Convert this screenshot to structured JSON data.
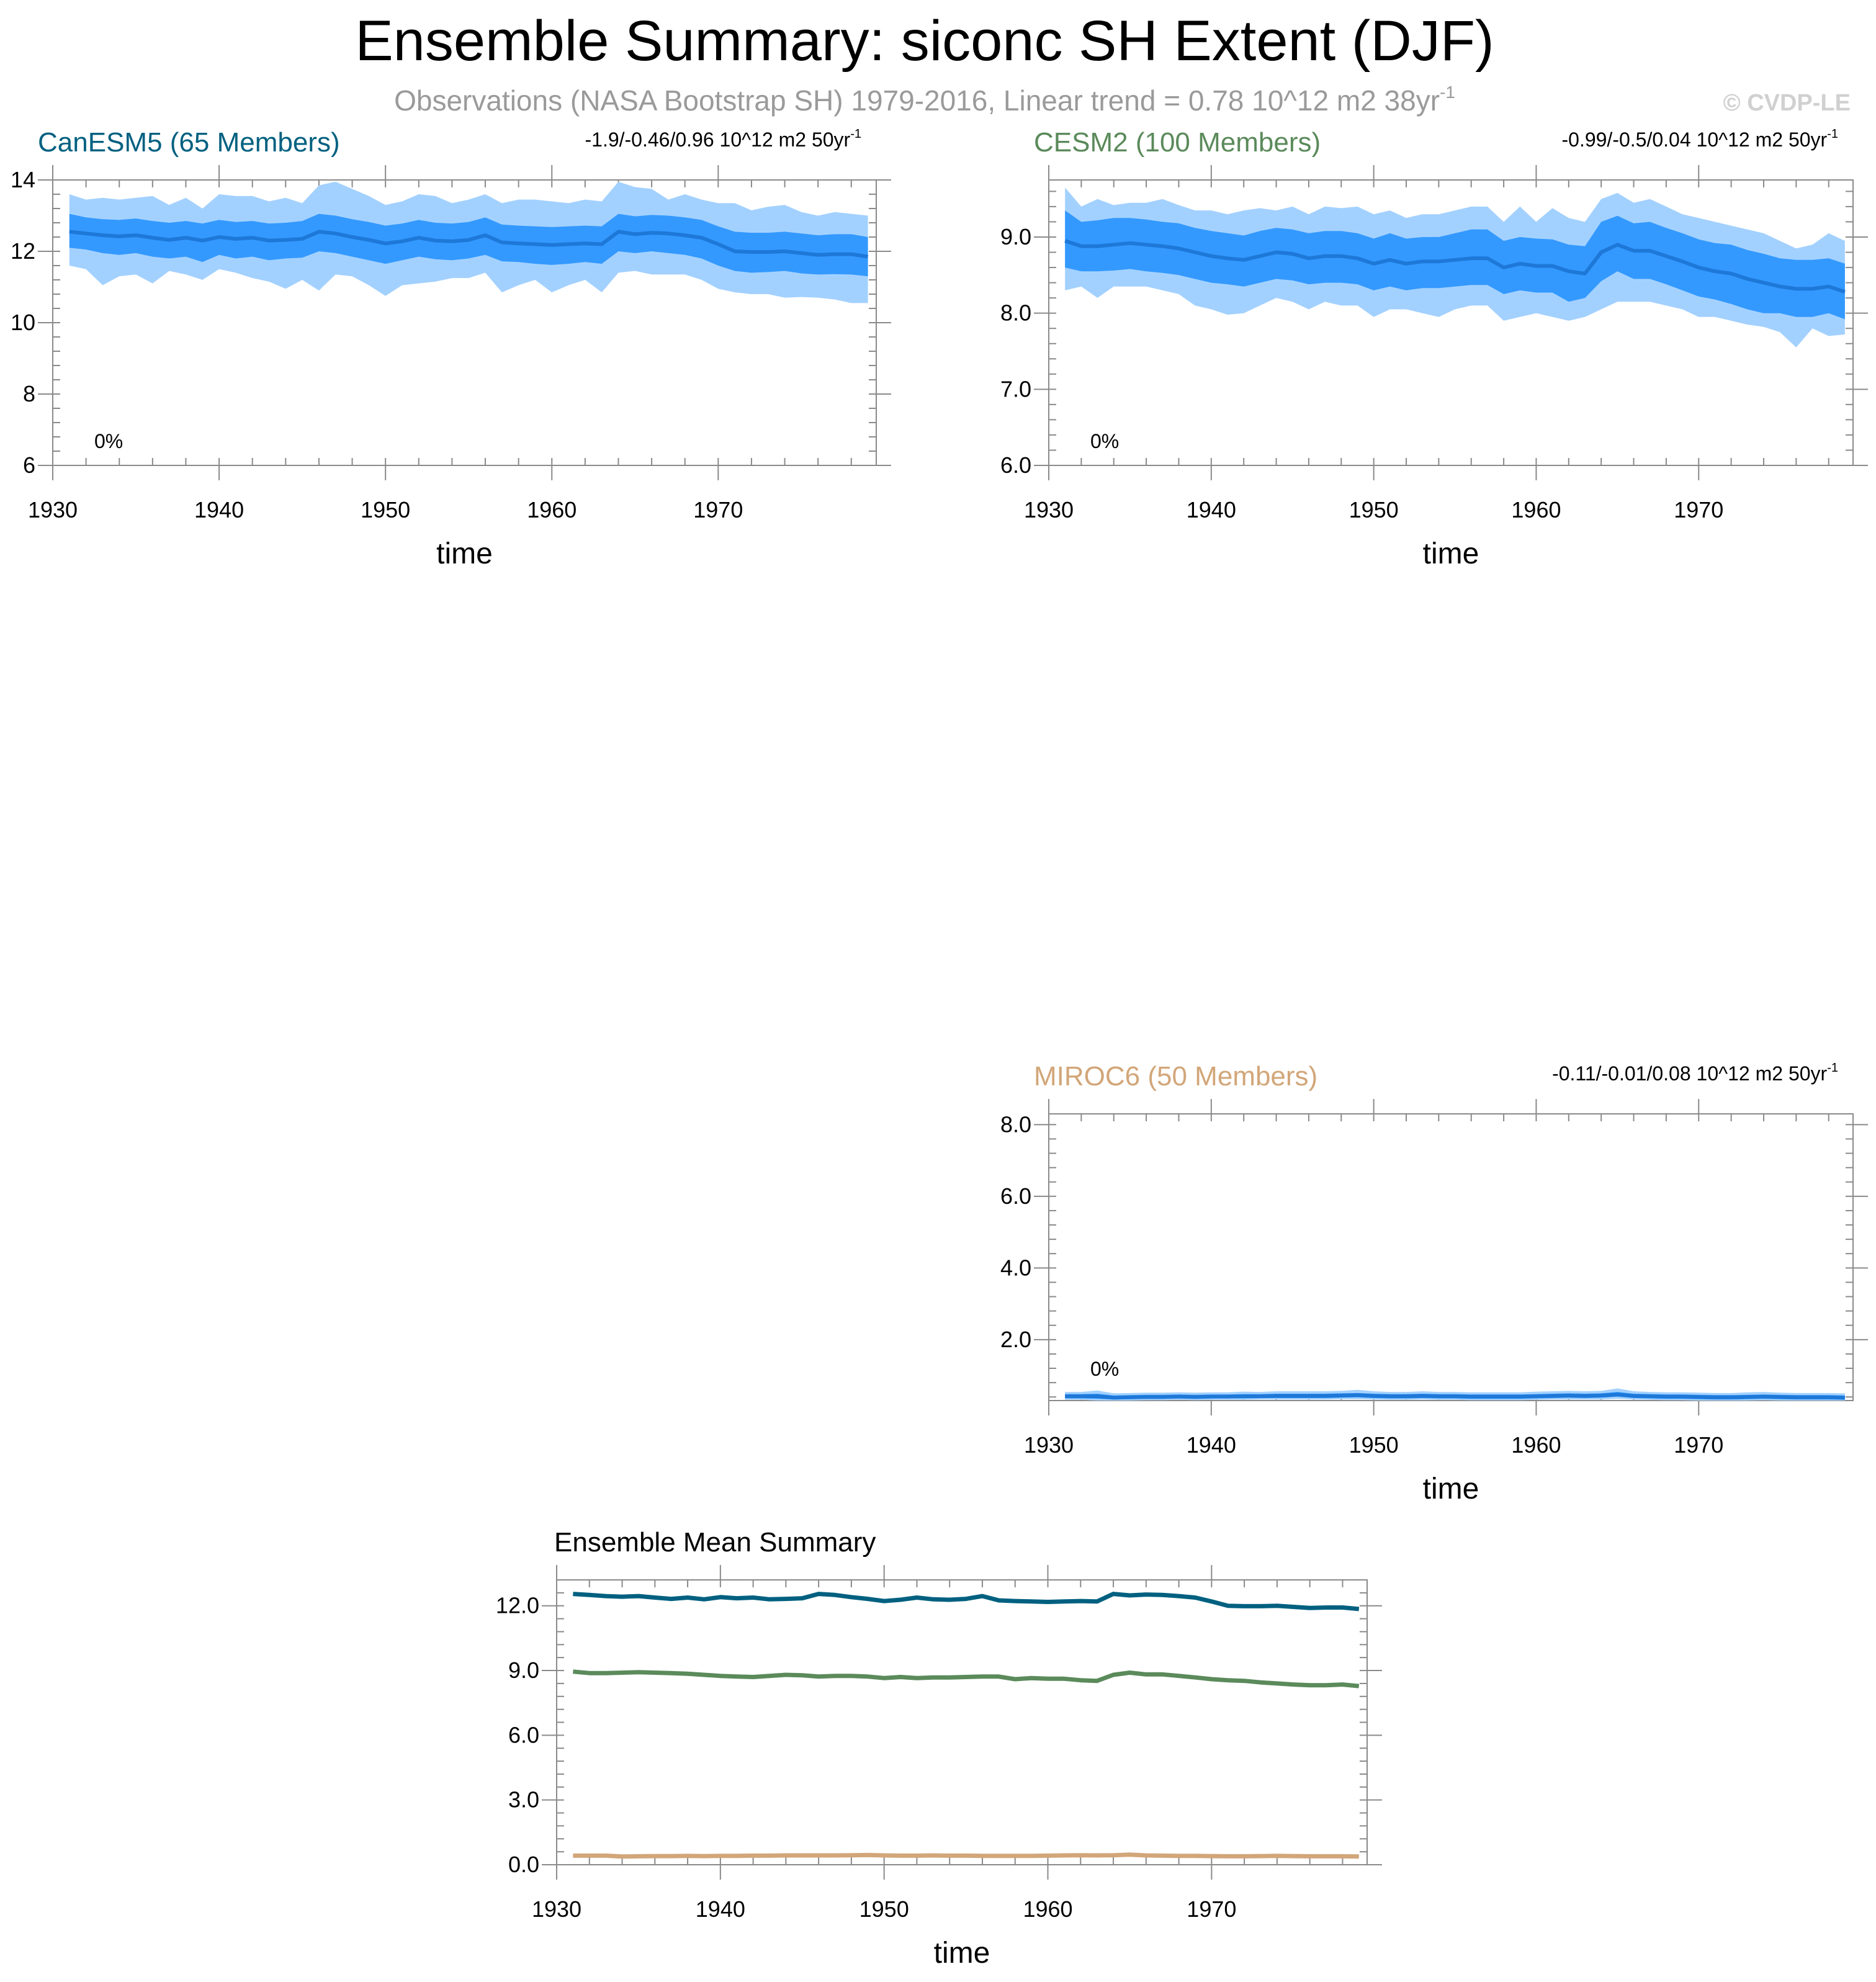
{
  "figure": {
    "title": "Ensemble Summary: siconc SH Extent (DJF)",
    "subtitle_main": "Observations (NASA Bootstrap SH) 1979-2016, Linear trend = 0.78 10^12 m2 38yr",
    "subtitle_exp": "-1",
    "watermark": "© CVDP-LE"
  },
  "colors": {
    "band_outer": "#A3D1FF",
    "band_inner": "#3399FF",
    "mean_line": "#1E78D8",
    "axis": "#000000",
    "subtitle": "#9A9A9A",
    "watermark": "#D0D0D0"
  },
  "chart_data": [
    {
      "id": "canesm5",
      "type": "area",
      "title": "CanESM5 (65 Members)",
      "title_color": "#006080",
      "trend_main": "-1.9/-0.46/0.96 10^12 m2 50yr",
      "trend_exp": "-1",
      "percent_label": "0%",
      "xlabel": "time",
      "xlim": [
        1930,
        1979.5
      ],
      "xticks": [
        1930,
        1940,
        1950,
        1960,
        1970
      ],
      "xtick_labels": [
        "1930",
        "1940",
        "1950",
        "1960",
        "1970"
      ],
      "ylim": [
        6,
        14
      ],
      "yticks": [
        6,
        8,
        10,
        12,
        14
      ],
      "ytick_labels": [
        "6",
        "8",
        "10",
        "12",
        "14"
      ],
      "x": [
        1931,
        1932,
        1933,
        1934,
        1935,
        1936,
        1937,
        1938,
        1939,
        1940,
        1941,
        1942,
        1943,
        1944,
        1945,
        1946,
        1947,
        1948,
        1949,
        1950,
        1951,
        1952,
        1953,
        1954,
        1955,
        1956,
        1957,
        1958,
        1959,
        1960,
        1961,
        1962,
        1963,
        1964,
        1965,
        1966,
        1967,
        1968,
        1969,
        1970,
        1971,
        1972,
        1973,
        1974,
        1975,
        1976,
        1977,
        1978,
        1979
      ],
      "mean": [
        12.55,
        12.5,
        12.45,
        12.42,
        12.45,
        12.38,
        12.32,
        12.38,
        12.3,
        12.4,
        12.35,
        12.38,
        12.3,
        12.32,
        12.35,
        12.55,
        12.5,
        12.4,
        12.32,
        12.22,
        12.28,
        12.38,
        12.3,
        12.28,
        12.32,
        12.45,
        12.25,
        12.22,
        12.2,
        12.18,
        12.2,
        12.22,
        12.2,
        12.55,
        12.48,
        12.52,
        12.5,
        12.45,
        12.38,
        12.2,
        12.0,
        11.98,
        11.98,
        12.0,
        11.95,
        11.9,
        11.92,
        11.92,
        11.85
      ],
      "p10": [
        12.1,
        12.05,
        11.95,
        11.9,
        11.95,
        11.85,
        11.8,
        11.85,
        11.7,
        11.9,
        11.8,
        11.85,
        11.75,
        11.8,
        11.82,
        12.0,
        11.95,
        11.85,
        11.75,
        11.65,
        11.75,
        11.85,
        11.78,
        11.75,
        11.8,
        11.9,
        11.72,
        11.7,
        11.65,
        11.62,
        11.65,
        11.7,
        11.65,
        12.0,
        11.95,
        12.0,
        11.95,
        11.9,
        11.8,
        11.6,
        11.45,
        11.4,
        11.42,
        11.45,
        11.38,
        11.35,
        11.36,
        11.35,
        11.3
      ],
      "p90": [
        13.05,
        12.95,
        12.9,
        12.88,
        12.92,
        12.85,
        12.8,
        12.85,
        12.78,
        12.88,
        12.82,
        12.85,
        12.78,
        12.8,
        12.85,
        13.05,
        13.0,
        12.9,
        12.82,
        12.72,
        12.78,
        12.88,
        12.8,
        12.78,
        12.82,
        12.95,
        12.75,
        12.72,
        12.7,
        12.68,
        12.7,
        12.72,
        12.7,
        13.05,
        12.98,
        13.02,
        13.0,
        12.95,
        12.88,
        12.7,
        12.55,
        12.52,
        12.52,
        12.55,
        12.5,
        12.45,
        12.48,
        12.48,
        12.4
      ],
      "min": [
        11.6,
        11.5,
        11.05,
        11.3,
        11.35,
        11.1,
        11.45,
        11.35,
        11.2,
        11.5,
        11.4,
        11.25,
        11.15,
        10.95,
        11.2,
        10.9,
        11.35,
        11.3,
        11.05,
        10.75,
        11.05,
        11.1,
        11.15,
        11.25,
        11.25,
        11.4,
        10.85,
        11.05,
        11.2,
        10.85,
        11.05,
        11.2,
        10.85,
        11.4,
        11.45,
        11.35,
        11.35,
        11.35,
        11.2,
        10.95,
        10.85,
        10.8,
        10.8,
        10.7,
        10.72,
        10.7,
        10.65,
        10.55,
        10.55
      ],
      "max": [
        13.6,
        13.45,
        13.5,
        13.45,
        13.5,
        13.55,
        13.3,
        13.5,
        13.2,
        13.6,
        13.55,
        13.55,
        13.4,
        13.5,
        13.35,
        13.85,
        13.95,
        13.75,
        13.55,
        13.3,
        13.4,
        13.6,
        13.55,
        13.35,
        13.45,
        13.6,
        13.35,
        13.45,
        13.45,
        13.4,
        13.35,
        13.45,
        13.4,
        13.95,
        13.8,
        13.75,
        13.45,
        13.6,
        13.45,
        13.35,
        13.35,
        13.15,
        13.25,
        13.3,
        13.1,
        13.0,
        13.1,
        13.05,
        13.0
      ]
    },
    {
      "id": "cesm2",
      "type": "area",
      "title": "CESM2 (100 Members)",
      "title_color": "#5B8A5B",
      "trend_main": "-0.99/-0.5/0.04 10^12 m2 50yr",
      "trend_exp": "-1",
      "percent_label": "0%",
      "xlabel": "time",
      "xlim": [
        1930,
        1979.5
      ],
      "xticks": [
        1930,
        1940,
        1950,
        1960,
        1970
      ],
      "xtick_labels": [
        "1930",
        "1940",
        "1950",
        "1960",
        "1970"
      ],
      "ylim": [
        6.0,
        9.75
      ],
      "yticks": [
        6.0,
        7.0,
        8.0,
        9.0
      ],
      "ytick_labels": [
        "6.0",
        "7.0",
        "8.0",
        "9.0"
      ],
      "x": [
        1931,
        1932,
        1933,
        1934,
        1935,
        1936,
        1937,
        1938,
        1939,
        1940,
        1941,
        1942,
        1943,
        1944,
        1945,
        1946,
        1947,
        1948,
        1949,
        1950,
        1951,
        1952,
        1953,
        1954,
        1955,
        1956,
        1957,
        1958,
        1959,
        1960,
        1961,
        1962,
        1963,
        1964,
        1965,
        1966,
        1967,
        1968,
        1969,
        1970,
        1971,
        1972,
        1973,
        1974,
        1975,
        1976,
        1977,
        1978,
        1979
      ],
      "mean": [
        8.95,
        8.88,
        8.88,
        8.9,
        8.92,
        8.9,
        8.88,
        8.85,
        8.8,
        8.75,
        8.72,
        8.7,
        8.75,
        8.8,
        8.78,
        8.72,
        8.75,
        8.75,
        8.72,
        8.65,
        8.7,
        8.65,
        8.68,
        8.68,
        8.7,
        8.72,
        8.72,
        8.6,
        8.65,
        8.62,
        8.62,
        8.55,
        8.52,
        8.8,
        8.9,
        8.82,
        8.82,
        8.75,
        8.68,
        8.6,
        8.55,
        8.52,
        8.45,
        8.4,
        8.35,
        8.32,
        8.32,
        8.35,
        8.28
      ],
      "p10": [
        8.6,
        8.55,
        8.55,
        8.56,
        8.58,
        8.55,
        8.53,
        8.5,
        8.45,
        8.4,
        8.38,
        8.35,
        8.4,
        8.45,
        8.43,
        8.38,
        8.4,
        8.4,
        8.38,
        8.3,
        8.35,
        8.3,
        8.33,
        8.33,
        8.35,
        8.37,
        8.37,
        8.25,
        8.3,
        8.27,
        8.27,
        8.15,
        8.2,
        8.42,
        8.55,
        8.45,
        8.45,
        8.38,
        8.3,
        8.22,
        8.18,
        8.12,
        8.05,
        8.0,
        8.0,
        7.95,
        7.95,
        8.0,
        7.92
      ],
      "p90": [
        9.35,
        9.2,
        9.22,
        9.25,
        9.25,
        9.23,
        9.2,
        9.18,
        9.12,
        9.08,
        9.05,
        9.02,
        9.08,
        9.12,
        9.1,
        9.05,
        9.08,
        9.08,
        9.05,
        8.98,
        9.05,
        8.98,
        9.0,
        9.0,
        9.05,
        9.1,
        9.1,
        8.95,
        9.0,
        8.98,
        8.97,
        8.9,
        8.88,
        9.2,
        9.28,
        9.18,
        9.2,
        9.12,
        9.05,
        8.97,
        8.92,
        8.9,
        8.83,
        8.78,
        8.72,
        8.7,
        8.7,
        8.72,
        8.65
      ],
      "min": [
        8.3,
        8.35,
        8.2,
        8.35,
        8.35,
        8.35,
        8.3,
        8.25,
        8.1,
        8.05,
        7.98,
        8.0,
        8.1,
        8.2,
        8.15,
        8.05,
        8.15,
        8.1,
        8.1,
        7.95,
        8.05,
        8.05,
        8.0,
        7.95,
        8.05,
        8.1,
        8.1,
        7.9,
        7.95,
        8.0,
        7.95,
        7.9,
        7.95,
        8.05,
        8.15,
        8.15,
        8.15,
        8.1,
        8.05,
        7.95,
        7.95,
        7.9,
        7.85,
        7.82,
        7.75,
        7.55,
        7.8,
        7.7,
        7.72
      ],
      "max": [
        9.65,
        9.4,
        9.5,
        9.42,
        9.45,
        9.45,
        9.5,
        9.42,
        9.35,
        9.35,
        9.3,
        9.35,
        9.38,
        9.35,
        9.4,
        9.3,
        9.4,
        9.38,
        9.4,
        9.3,
        9.35,
        9.25,
        9.3,
        9.3,
        9.35,
        9.4,
        9.4,
        9.2,
        9.4,
        9.2,
        9.38,
        9.25,
        9.2,
        9.5,
        9.58,
        9.45,
        9.5,
        9.4,
        9.3,
        9.25,
        9.2,
        9.15,
        9.1,
        9.05,
        8.95,
        8.85,
        8.9,
        9.05,
        8.95
      ]
    },
    {
      "id": "miroc6",
      "type": "area",
      "title": "MIROC6 (50 Members)",
      "title_color": "#D2A679",
      "trend_main": "-0.11/-0.01/0.08 10^12 m2 50yr",
      "trend_exp": "-1",
      "percent_label": "0%",
      "xlabel": "time",
      "xlim": [
        1930,
        1979.5
      ],
      "xticks": [
        1930,
        1940,
        1950,
        1960,
        1970
      ],
      "xtick_labels": [
        "1930",
        "1940",
        "1950",
        "1960",
        "1970"
      ],
      "ylim": [
        0.3,
        8.3
      ],
      "yticks": [
        2.0,
        4.0,
        6.0,
        8.0
      ],
      "ytick_labels": [
        "2.0",
        "4.0",
        "6.0",
        "8.0"
      ],
      "x": [
        1931,
        1932,
        1933,
        1934,
        1935,
        1936,
        1937,
        1938,
        1939,
        1940,
        1941,
        1942,
        1943,
        1944,
        1945,
        1946,
        1947,
        1948,
        1949,
        1950,
        1951,
        1952,
        1953,
        1954,
        1955,
        1956,
        1957,
        1958,
        1959,
        1960,
        1961,
        1962,
        1963,
        1964,
        1965,
        1966,
        1967,
        1968,
        1969,
        1970,
        1971,
        1972,
        1973,
        1974,
        1975,
        1976,
        1977,
        1978,
        1979
      ],
      "mean": [
        0.42,
        0.42,
        0.42,
        0.38,
        0.39,
        0.4,
        0.4,
        0.41,
        0.4,
        0.41,
        0.41,
        0.42,
        0.42,
        0.43,
        0.43,
        0.43,
        0.43,
        0.44,
        0.45,
        0.43,
        0.42,
        0.42,
        0.43,
        0.42,
        0.42,
        0.41,
        0.41,
        0.41,
        0.41,
        0.42,
        0.43,
        0.44,
        0.43,
        0.44,
        0.47,
        0.43,
        0.42,
        0.41,
        0.41,
        0.4,
        0.39,
        0.39,
        0.4,
        0.41,
        0.4,
        0.39,
        0.39,
        0.39,
        0.38
      ],
      "p10": [
        0.36,
        0.36,
        0.35,
        0.33,
        0.34,
        0.35,
        0.35,
        0.36,
        0.35,
        0.36,
        0.36,
        0.36,
        0.37,
        0.37,
        0.37,
        0.37,
        0.37,
        0.38,
        0.39,
        0.37,
        0.36,
        0.36,
        0.37,
        0.36,
        0.36,
        0.35,
        0.35,
        0.35,
        0.35,
        0.36,
        0.37,
        0.38,
        0.37,
        0.38,
        0.41,
        0.37,
        0.36,
        0.35,
        0.35,
        0.34,
        0.33,
        0.33,
        0.34,
        0.35,
        0.34,
        0.33,
        0.33,
        0.33,
        0.32
      ],
      "p90": [
        0.48,
        0.48,
        0.49,
        0.44,
        0.45,
        0.46,
        0.46,
        0.47,
        0.46,
        0.47,
        0.47,
        0.48,
        0.48,
        0.49,
        0.49,
        0.49,
        0.49,
        0.5,
        0.51,
        0.49,
        0.48,
        0.48,
        0.49,
        0.48,
        0.48,
        0.47,
        0.47,
        0.47,
        0.47,
        0.48,
        0.49,
        0.5,
        0.49,
        0.5,
        0.54,
        0.49,
        0.48,
        0.47,
        0.47,
        0.46,
        0.45,
        0.45,
        0.46,
        0.47,
        0.46,
        0.45,
        0.45,
        0.45,
        0.44
      ],
      "min": [
        0.32,
        0.32,
        0.3,
        0.3,
        0.3,
        0.31,
        0.31,
        0.32,
        0.31,
        0.32,
        0.32,
        0.32,
        0.33,
        0.33,
        0.33,
        0.33,
        0.33,
        0.34,
        0.34,
        0.33,
        0.32,
        0.32,
        0.33,
        0.32,
        0.32,
        0.31,
        0.31,
        0.31,
        0.31,
        0.32,
        0.33,
        0.33,
        0.33,
        0.33,
        0.35,
        0.33,
        0.32,
        0.31,
        0.31,
        0.3,
        0.3,
        0.3,
        0.3,
        0.31,
        0.3,
        0.3,
        0.3,
        0.3,
        0.3
      ],
      "max": [
        0.54,
        0.54,
        0.58,
        0.5,
        0.51,
        0.52,
        0.52,
        0.53,
        0.52,
        0.53,
        0.53,
        0.55,
        0.54,
        0.56,
        0.56,
        0.56,
        0.56,
        0.57,
        0.6,
        0.56,
        0.54,
        0.54,
        0.56,
        0.54,
        0.54,
        0.53,
        0.53,
        0.53,
        0.53,
        0.55,
        0.56,
        0.57,
        0.56,
        0.57,
        0.64,
        0.56,
        0.54,
        0.53,
        0.53,
        0.52,
        0.51,
        0.51,
        0.53,
        0.54,
        0.52,
        0.51,
        0.51,
        0.51,
        0.5
      ]
    },
    {
      "id": "summary",
      "type": "line",
      "title": "Ensemble Mean Summary",
      "xlabel": "time",
      "xlim": [
        1930,
        1979.5
      ],
      "xticks": [
        1930,
        1940,
        1950,
        1960,
        1970
      ],
      "xtick_labels": [
        "1930",
        "1940",
        "1950",
        "1960",
        "1970"
      ],
      "ylim": [
        0.0,
        13.2
      ],
      "yticks": [
        0.0,
        3.0,
        6.0,
        9.0,
        12.0
      ],
      "ytick_labels": [
        "0.0",
        "3.0",
        "6.0",
        "9.0",
        "12.0"
      ],
      "x": [
        1931,
        1932,
        1933,
        1934,
        1935,
        1936,
        1937,
        1938,
        1939,
        1940,
        1941,
        1942,
        1943,
        1944,
        1945,
        1946,
        1947,
        1948,
        1949,
        1950,
        1951,
        1952,
        1953,
        1954,
        1955,
        1956,
        1957,
        1958,
        1959,
        1960,
        1961,
        1962,
        1963,
        1964,
        1965,
        1966,
        1967,
        1968,
        1969,
        1970,
        1971,
        1972,
        1973,
        1974,
        1975,
        1976,
        1977,
        1978,
        1979
      ],
      "series": [
        {
          "name": "CanESM5",
          "color": "#006080",
          "values": [
            12.55,
            12.5,
            12.45,
            12.42,
            12.45,
            12.38,
            12.32,
            12.38,
            12.3,
            12.4,
            12.35,
            12.38,
            12.3,
            12.32,
            12.35,
            12.55,
            12.5,
            12.4,
            12.32,
            12.22,
            12.28,
            12.38,
            12.3,
            12.28,
            12.32,
            12.45,
            12.25,
            12.22,
            12.2,
            12.18,
            12.2,
            12.22,
            12.2,
            12.55,
            12.48,
            12.52,
            12.5,
            12.45,
            12.38,
            12.2,
            12.0,
            11.98,
            11.98,
            12.0,
            11.95,
            11.9,
            11.92,
            11.92,
            11.85
          ]
        },
        {
          "name": "CESM2",
          "color": "#5B8A5B",
          "values": [
            8.95,
            8.88,
            8.88,
            8.9,
            8.92,
            8.9,
            8.88,
            8.85,
            8.8,
            8.75,
            8.72,
            8.7,
            8.75,
            8.8,
            8.78,
            8.72,
            8.75,
            8.75,
            8.72,
            8.65,
            8.7,
            8.65,
            8.68,
            8.68,
            8.7,
            8.72,
            8.72,
            8.6,
            8.65,
            8.62,
            8.62,
            8.55,
            8.52,
            8.8,
            8.9,
            8.82,
            8.82,
            8.75,
            8.68,
            8.6,
            8.55,
            8.52,
            8.45,
            8.4,
            8.35,
            8.32,
            8.32,
            8.35,
            8.28
          ]
        },
        {
          "name": "MIROC6",
          "color": "#D2A679",
          "values": [
            0.42,
            0.42,
            0.42,
            0.38,
            0.39,
            0.4,
            0.4,
            0.41,
            0.4,
            0.41,
            0.41,
            0.42,
            0.42,
            0.43,
            0.43,
            0.43,
            0.43,
            0.44,
            0.45,
            0.43,
            0.42,
            0.42,
            0.43,
            0.42,
            0.42,
            0.41,
            0.41,
            0.41,
            0.41,
            0.42,
            0.43,
            0.44,
            0.43,
            0.44,
            0.47,
            0.43,
            0.42,
            0.41,
            0.41,
            0.4,
            0.39,
            0.39,
            0.4,
            0.41,
            0.4,
            0.39,
            0.39,
            0.39,
            0.38
          ]
        }
      ]
    }
  ]
}
